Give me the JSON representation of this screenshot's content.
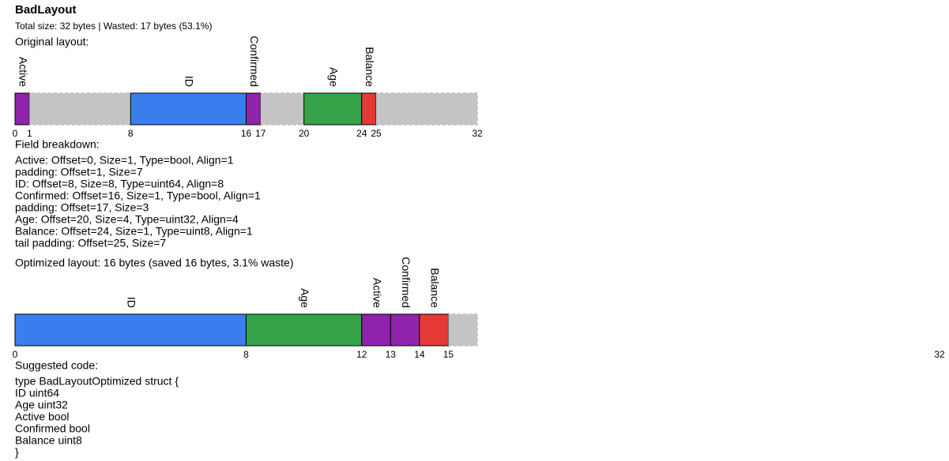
{
  "title": "BadLayout",
  "summary": "Total size: 32 bytes | Wasted: 17 bytes (53.1%)",
  "original": {
    "heading": "Original layout:",
    "size": 32,
    "segments": [
      {
        "label": "Active",
        "offset": 0,
        "size": 1,
        "color": "#8e24aa"
      },
      {
        "offset": 1,
        "size": 7,
        "color": "#c4c4c4"
      },
      {
        "label": "ID",
        "offset": 8,
        "size": 8,
        "color": "#3b7ded"
      },
      {
        "label": "Confirmed",
        "offset": 16,
        "size": 1,
        "color": "#8e24aa"
      },
      {
        "offset": 17,
        "size": 3,
        "color": "#c4c4c4"
      },
      {
        "label": "Age",
        "offset": 20,
        "size": 4,
        "color": "#36a34a"
      },
      {
        "label": "Balance",
        "offset": 24,
        "size": 1,
        "color": "#e53935"
      },
      {
        "offset": 25,
        "size": 7,
        "color": "#c4c4c4"
      }
    ],
    "ticks": [
      0,
      1,
      8,
      16,
      17,
      20,
      24,
      25,
      32
    ]
  },
  "breakdown": {
    "heading": "Field breakdown:",
    "lines": [
      "Active: Offset=0, Size=1, Type=bool, Align=1",
      "padding: Offset=1, Size=7",
      "ID: Offset=8, Size=8, Type=uint64, Align=8",
      "Confirmed: Offset=16, Size=1, Type=bool, Align=1",
      "padding: Offset=17, Size=3",
      "Age: Offset=20, Size=4, Type=uint32, Align=4",
      "Balance: Offset=24, Size=1, Type=uint8, Align=1",
      "tail padding: Offset=25, Size=7"
    ]
  },
  "optimized": {
    "heading": "Optimized layout: 16 bytes (saved 16 bytes, 3.1% waste)",
    "size": 16,
    "segments": [
      {
        "label": "ID",
        "offset": 0,
        "size": 8,
        "color": "#3b7ded"
      },
      {
        "label": "Age",
        "offset": 8,
        "size": 4,
        "color": "#36a34a"
      },
      {
        "label": "Active",
        "offset": 12,
        "size": 1,
        "color": "#8e24aa"
      },
      {
        "label": "Confirmed",
        "offset": 13,
        "size": 1,
        "color": "#8e24aa"
      },
      {
        "label": "Balance",
        "offset": 14,
        "size": 1,
        "color": "#e53935"
      },
      {
        "offset": 15,
        "size": 1,
        "color": "#c4c4c4"
      }
    ],
    "ticks": [
      0,
      8,
      12,
      13,
      14,
      15,
      32
    ]
  },
  "code": {
    "heading": "Suggested code:",
    "lines": [
      "type BadLayoutOptimized struct {",
      "ID uint64",
      "Age uint32",
      "Active bool",
      "Confirmed bool",
      "Balance uint8",
      "}"
    ]
  }
}
